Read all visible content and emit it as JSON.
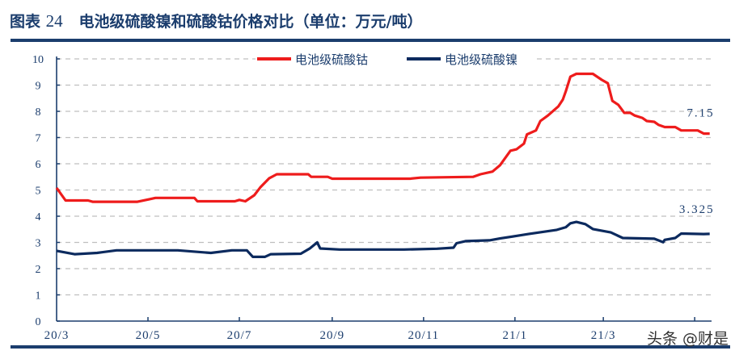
{
  "header": {
    "figure_label": "图表",
    "figure_number": "24",
    "title": "电池级硫酸镍和硫酸钴价格对比（单位：万元/吨）"
  },
  "watermark": "头条 @财是",
  "colors": {
    "accent": "#1b3d6d",
    "cobalt": "#ee1c1c",
    "nickel": "#0c2a5e",
    "grid": "#bfbfbf"
  },
  "chart_data": {
    "type": "line",
    "title": "",
    "xlabel": "",
    "ylabel": "",
    "ylim": [
      0,
      10
    ],
    "yticks": [
      "0",
      "1",
      "2",
      "3",
      "4",
      "5",
      "6",
      "7",
      "8",
      "9",
      "10"
    ],
    "xlim": [
      "2020-03-01",
      "2021-05-12"
    ],
    "xtick_labels": [
      "20/3",
      "20/5",
      "20/7",
      "20/9",
      "20/11",
      "21/1",
      "21/3"
    ],
    "xtick_dates": [
      "2020-03-01",
      "2020-05-01",
      "2020-07-01",
      "2020-09-01",
      "2020-11-01",
      "2021-01-01",
      "2021-03-01",
      "2021-05-01"
    ],
    "grid": "horizontal dashed",
    "legend": "top-center",
    "series": [
      {
        "name": "电池级硫酸钴",
        "color": "#ee1c1c",
        "end_label": "7.15",
        "points": [
          [
            "2020-03-01",
            5.08
          ],
          [
            "2020-03-07",
            4.6
          ],
          [
            "2020-03-22",
            4.6
          ],
          [
            "2020-03-25",
            4.55
          ],
          [
            "2020-04-24",
            4.55
          ],
          [
            "2020-05-02",
            4.65
          ],
          [
            "2020-05-06",
            4.7
          ],
          [
            "2020-06-01",
            4.7
          ],
          [
            "2020-06-03",
            4.57
          ],
          [
            "2020-06-28",
            4.57
          ],
          [
            "2020-07-01",
            4.62
          ],
          [
            "2020-07-05",
            4.57
          ],
          [
            "2020-07-11",
            4.8
          ],
          [
            "2020-07-15",
            5.1
          ],
          [
            "2020-07-21",
            5.45
          ],
          [
            "2020-07-26",
            5.6
          ],
          [
            "2020-08-16",
            5.6
          ],
          [
            "2020-08-18",
            5.5
          ],
          [
            "2020-08-29",
            5.5
          ],
          [
            "2020-09-01",
            5.43
          ],
          [
            "2020-10-23",
            5.43
          ],
          [
            "2020-10-30",
            5.47
          ],
          [
            "2020-12-04",
            5.5
          ],
          [
            "2020-12-09",
            5.6
          ],
          [
            "2020-12-17",
            5.7
          ],
          [
            "2020-12-22",
            5.94
          ],
          [
            "2020-12-29",
            6.5
          ],
          [
            "2021-01-02",
            6.55
          ],
          [
            "2021-01-07",
            6.77
          ],
          [
            "2021-01-09",
            7.12
          ],
          [
            "2021-01-15",
            7.27
          ],
          [
            "2021-01-18",
            7.63
          ],
          [
            "2021-01-23",
            7.84
          ],
          [
            "2021-01-30",
            8.19
          ],
          [
            "2021-02-02",
            8.45
          ],
          [
            "2021-02-04",
            8.77
          ],
          [
            "2021-02-07",
            9.32
          ],
          [
            "2021-02-11",
            9.43
          ],
          [
            "2021-02-22",
            9.43
          ],
          [
            "2021-02-28",
            9.2
          ],
          [
            "2021-03-04",
            9.07
          ],
          [
            "2021-03-07",
            8.4
          ],
          [
            "2021-03-11",
            8.25
          ],
          [
            "2021-03-15",
            7.94
          ],
          [
            "2021-03-19",
            7.94
          ],
          [
            "2021-03-22",
            7.84
          ],
          [
            "2021-03-27",
            7.75
          ],
          [
            "2021-03-30",
            7.63
          ],
          [
            "2021-04-04",
            7.6
          ],
          [
            "2021-04-07",
            7.48
          ],
          [
            "2021-04-11",
            7.4
          ],
          [
            "2021-04-18",
            7.4
          ],
          [
            "2021-04-22",
            7.27
          ],
          [
            "2021-05-03",
            7.27
          ],
          [
            "2021-05-07",
            7.15
          ],
          [
            "2021-05-11",
            7.15
          ]
        ]
      },
      {
        "name": "电池级硫酸镍",
        "color": "#0c2a5e",
        "end_label": "3.325",
        "points": [
          [
            "2020-03-01",
            2.68
          ],
          [
            "2020-03-13",
            2.55
          ],
          [
            "2020-03-28",
            2.6
          ],
          [
            "2020-04-10",
            2.7
          ],
          [
            "2020-05-21",
            2.7
          ],
          [
            "2020-06-12",
            2.6
          ],
          [
            "2020-06-26",
            2.7
          ],
          [
            "2020-07-06",
            2.7
          ],
          [
            "2020-07-10",
            2.45
          ],
          [
            "2020-07-18",
            2.45
          ],
          [
            "2020-07-22",
            2.55
          ],
          [
            "2020-08-11",
            2.57
          ],
          [
            "2020-08-17",
            2.77
          ],
          [
            "2020-08-22",
            3.0
          ],
          [
            "2020-08-24",
            2.77
          ],
          [
            "2020-09-06",
            2.73
          ],
          [
            "2020-10-19",
            2.73
          ],
          [
            "2020-11-10",
            2.76
          ],
          [
            "2020-11-21",
            2.8
          ],
          [
            "2020-11-23",
            2.97
          ],
          [
            "2020-11-29",
            3.05
          ],
          [
            "2020-12-15",
            3.08
          ],
          [
            "2020-12-22",
            3.15
          ],
          [
            "2021-01-02",
            3.25
          ],
          [
            "2021-01-10",
            3.32
          ],
          [
            "2021-01-29",
            3.48
          ],
          [
            "2021-02-04",
            3.58
          ],
          [
            "2021-02-07",
            3.73
          ],
          [
            "2021-02-11",
            3.78
          ],
          [
            "2021-02-17",
            3.7
          ],
          [
            "2021-02-22",
            3.51
          ],
          [
            "2021-03-06",
            3.38
          ],
          [
            "2021-03-14",
            3.17
          ],
          [
            "2021-04-04",
            3.14
          ],
          [
            "2021-04-10",
            3.01
          ],
          [
            "2021-04-11",
            3.1
          ],
          [
            "2021-04-18",
            3.17
          ],
          [
            "2021-04-22",
            3.34
          ],
          [
            "2021-05-07",
            3.32
          ],
          [
            "2021-05-11",
            3.325
          ]
        ]
      }
    ]
  }
}
